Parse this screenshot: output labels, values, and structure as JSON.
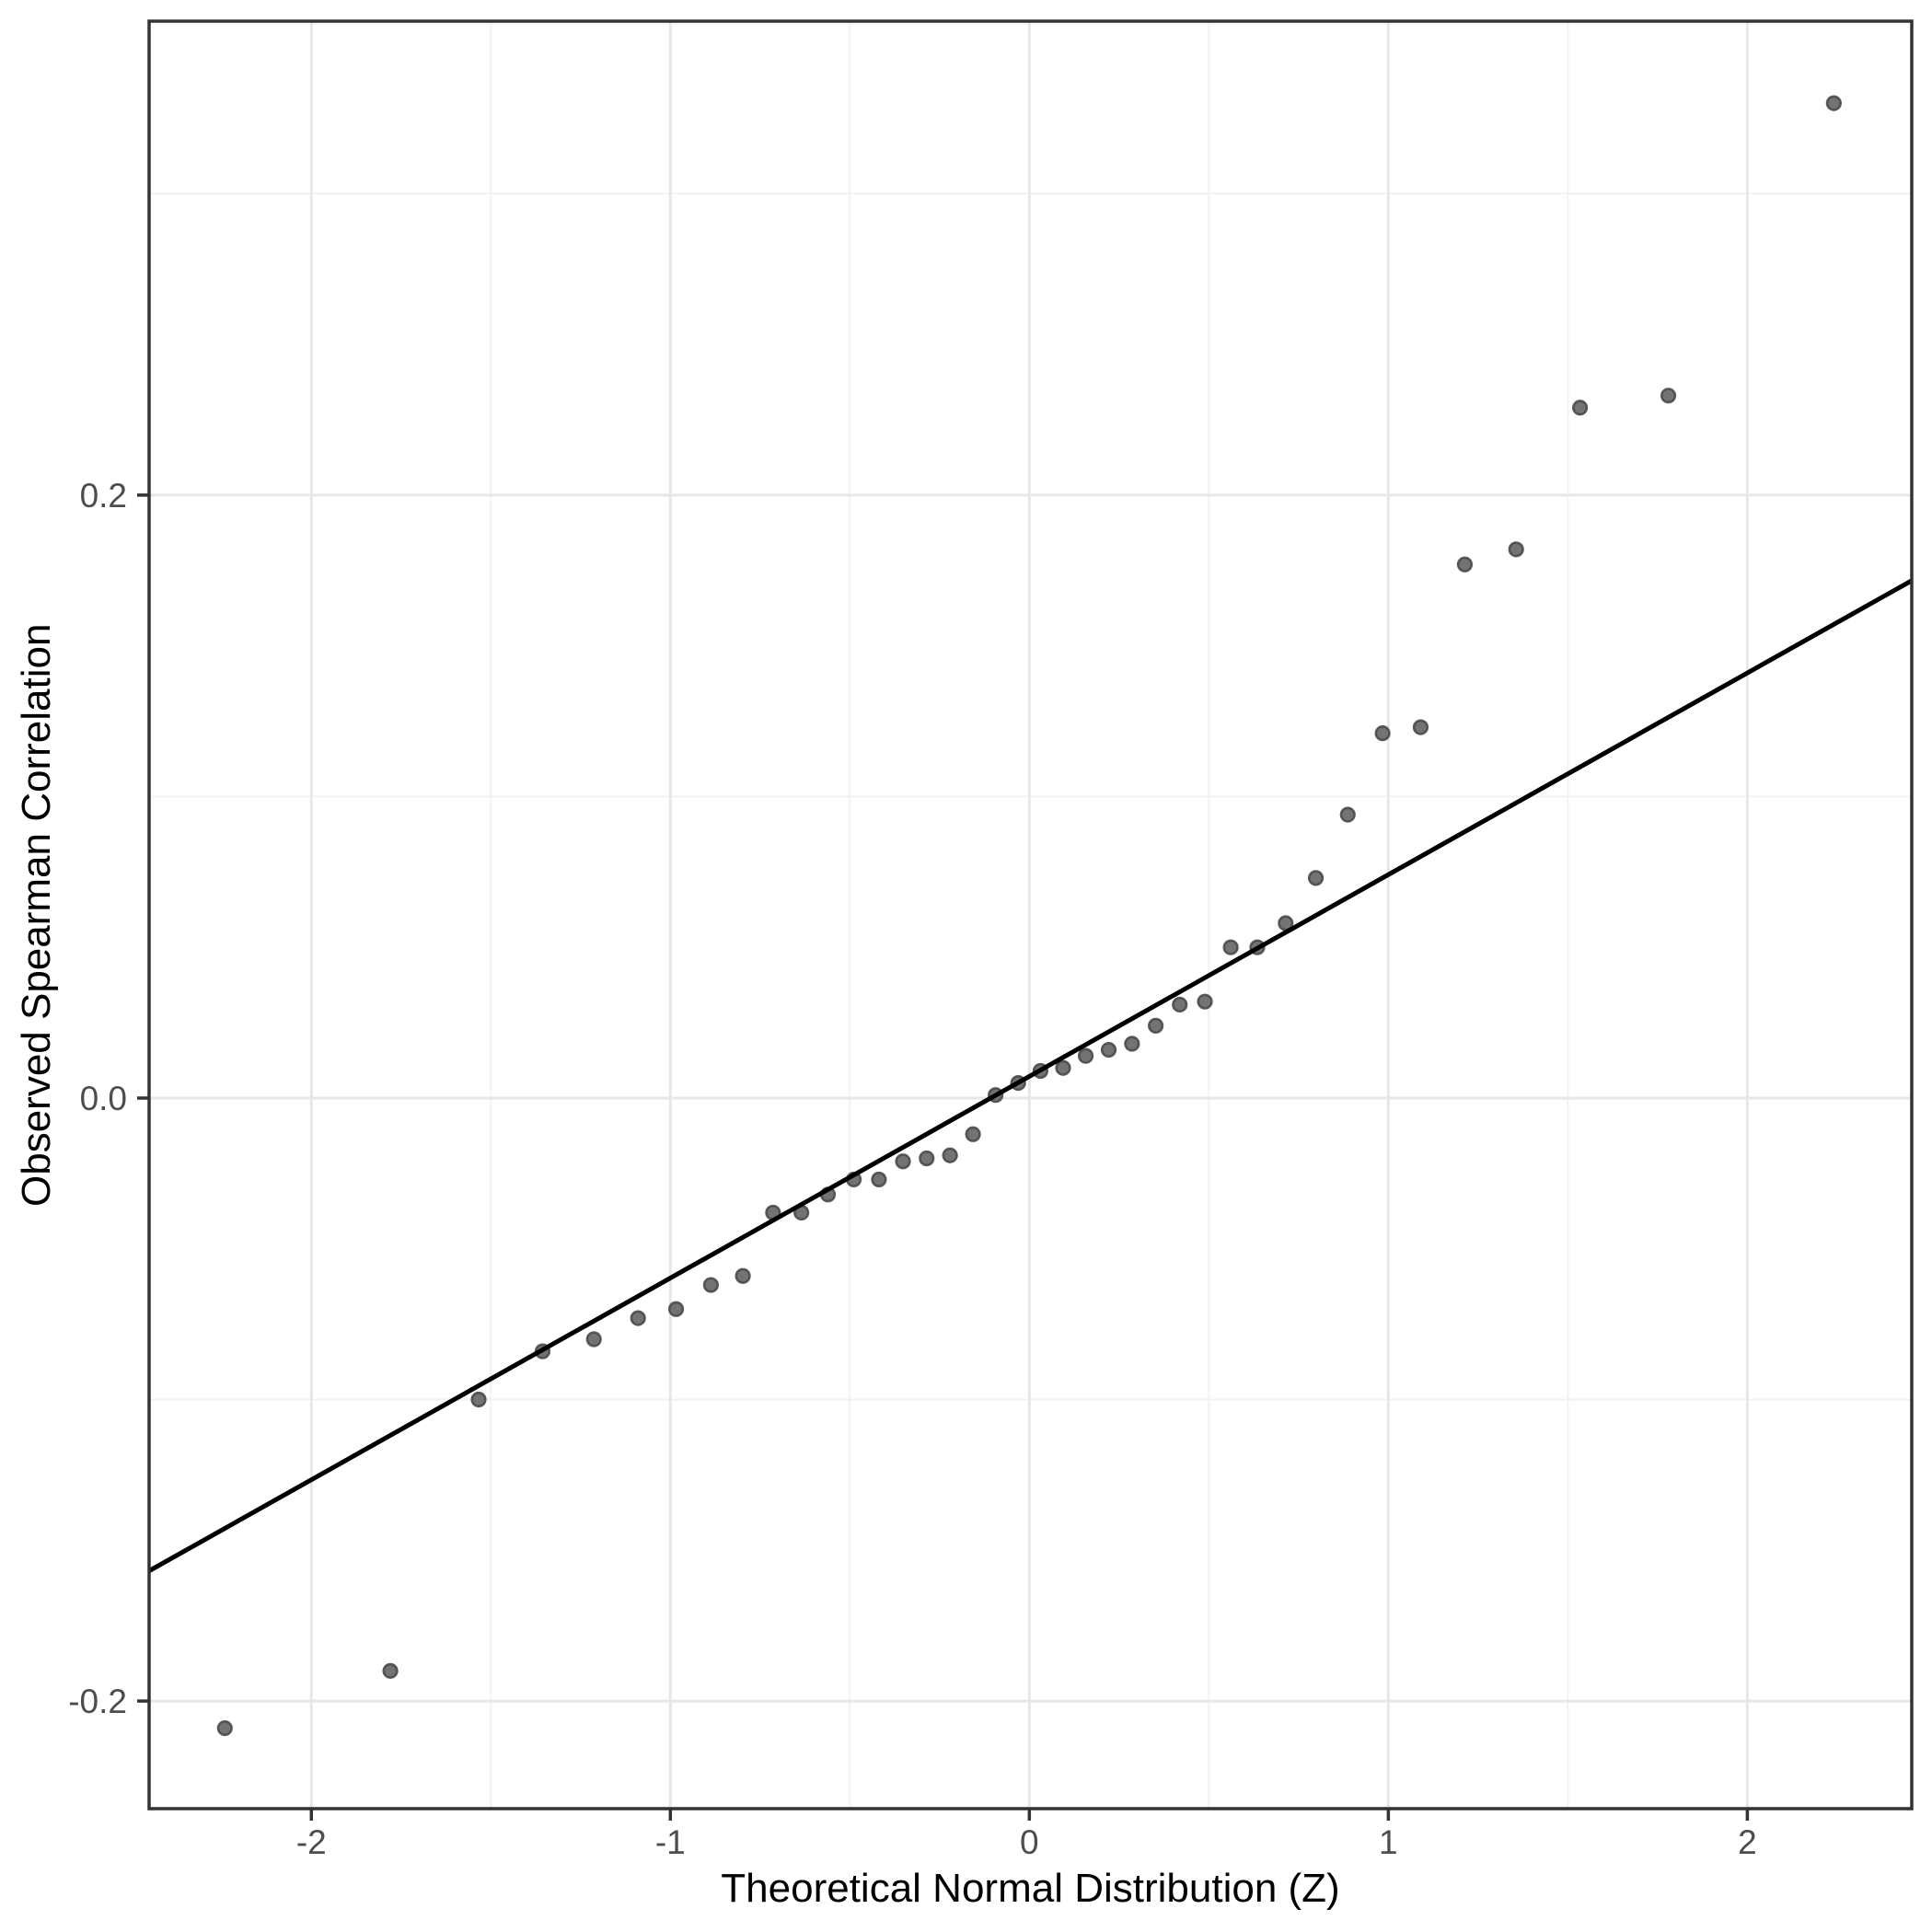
{
  "chart_data": {
    "type": "scatter",
    "subtype": "qq-plot",
    "title": "",
    "xlabel": "Theoretical Normal Distribution (Z)",
    "ylabel": "Observed Spearman Correlation",
    "xlim": [
      -2.452,
      2.458
    ],
    "ylim": [
      -0.2357,
      0.3572
    ],
    "grid": "major+minor",
    "legend": "none",
    "x_ticks": [
      {
        "value": -2,
        "label": "-2"
      },
      {
        "value": -1,
        "label": "-1"
      },
      {
        "value": 0,
        "label": "0"
      },
      {
        "value": 1,
        "label": "1"
      },
      {
        "value": 2,
        "label": "2"
      }
    ],
    "x_minor_ticks": [
      -1.5,
      -0.5,
      0.5,
      1.5
    ],
    "y_ticks": [
      {
        "value": -0.2,
        "label": "-0.2"
      },
      {
        "value": 0.0,
        "label": "0.0"
      },
      {
        "value": 0.2,
        "label": "0.2"
      }
    ],
    "y_minor_ticks": [
      -0.1,
      0.1,
      0.3
    ],
    "points": [
      [
        -2.241,
        -0.209
      ],
      [
        -1.78,
        -0.19
      ],
      [
        -1.534,
        -0.1
      ],
      [
        -1.356,
        -0.084
      ],
      [
        -1.213,
        -0.08
      ],
      [
        -1.09,
        -0.073
      ],
      [
        -0.984,
        -0.07
      ],
      [
        -0.887,
        -0.062
      ],
      [
        -0.798,
        -0.059
      ],
      [
        -0.714,
        -0.038
      ],
      [
        -0.635,
        -0.038
      ],
      [
        -0.561,
        -0.032
      ],
      [
        -0.489,
        -0.027
      ],
      [
        -0.419,
        -0.027
      ],
      [
        -0.352,
        -0.021
      ],
      [
        -0.286,
        -0.02
      ],
      [
        -0.221,
        -0.019
      ],
      [
        -0.157,
        -0.012
      ],
      [
        -0.094,
        0.001
      ],
      [
        -0.031,
        0.005
      ],
      [
        0.031,
        0.009
      ],
      [
        0.094,
        0.01
      ],
      [
        0.157,
        0.014
      ],
      [
        0.221,
        0.016
      ],
      [
        0.286,
        0.018
      ],
      [
        0.352,
        0.024
      ],
      [
        0.419,
        0.031
      ],
      [
        0.489,
        0.032
      ],
      [
        0.561,
        0.05
      ],
      [
        0.635,
        0.05
      ],
      [
        0.714,
        0.058
      ],
      [
        0.798,
        0.073
      ],
      [
        0.887,
        0.094
      ],
      [
        0.984,
        0.121
      ],
      [
        1.09,
        0.123
      ],
      [
        1.213,
        0.177
      ],
      [
        1.356,
        0.182
      ],
      [
        1.534,
        0.229
      ],
      [
        1.78,
        0.233
      ],
      [
        2.241,
        0.33
      ]
    ],
    "reference_line": {
      "type": "qq-line",
      "slope": 0.0669,
      "intercept": 0.0072
    },
    "colors": {
      "background": "#ffffff",
      "panel_background": "#ffffff",
      "panel_border": "#333333",
      "grid_major": "#e7e7e7",
      "grid_minor": "#f2f2f2",
      "tick_mark": "#333333",
      "tick_label": "#4d4d4d",
      "axis_title": "#000000",
      "point_fill": "#737373",
      "point_stroke": "#4a4a4a",
      "reference_line_color": "#000000"
    }
  }
}
